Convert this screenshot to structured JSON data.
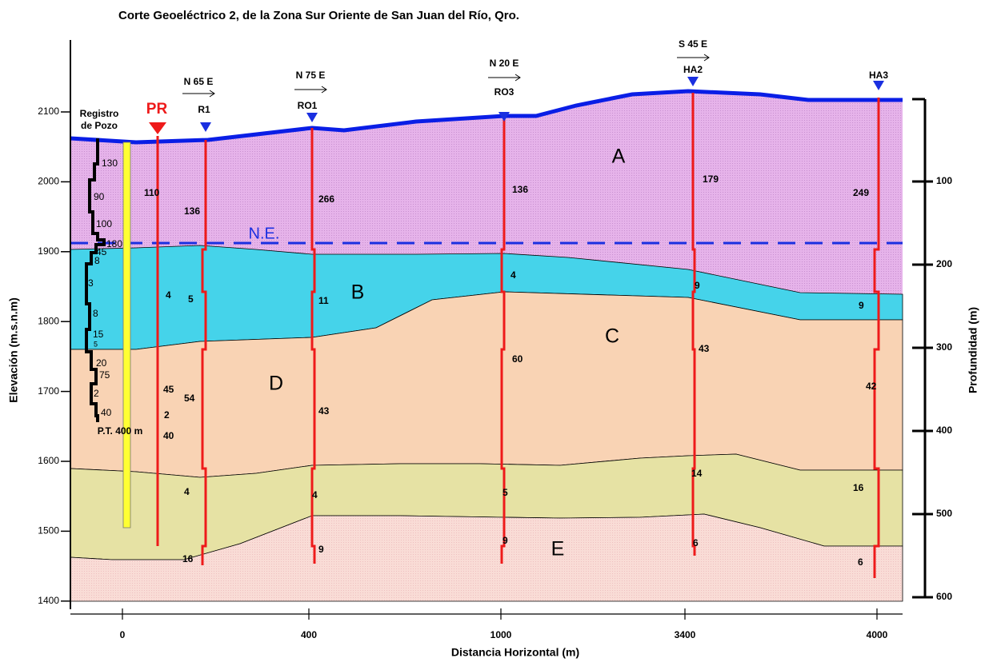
{
  "title": "Corte Geoeléctrico 2, de la Zona Sur Oriente de San Juan del Río, Qro.",
  "y_axis_label": "Elevación (m.s.n.m)",
  "y2_axis_label": "Profundidad (m)",
  "x_axis_label": "Distancia Horizontal (m)",
  "left_ticks": [
    1400,
    1500,
    1600,
    1700,
    1800,
    1900,
    2000,
    2100
  ],
  "right_ticks": [
    100,
    200,
    300,
    400,
    500,
    600
  ],
  "bottom_ticks": [
    "0",
    "400",
    "1000",
    "3400",
    "4000"
  ],
  "layers": [
    "A",
    "B",
    "C",
    "D",
    "E"
  ],
  "water_table": "N.E.",
  "well": {
    "title": [
      "Registro",
      "de Pozo"
    ],
    "values": [
      "130",
      "90",
      "100",
      "180",
      "45",
      "8",
      "3",
      "8",
      "15",
      "5",
      "20",
      "75",
      "2",
      "40"
    ],
    "depth": "P.T.  400 m"
  },
  "soundings": [
    {
      "name": "PR",
      "values": [
        "110",
        "4",
        "45",
        "2",
        "40"
      ]
    },
    {
      "name": "R1",
      "direction": "N 65 E",
      "values": [
        "136",
        "5",
        "54",
        "4",
        "16"
      ]
    },
    {
      "name": "RO1",
      "direction": "N 75 E",
      "values": [
        "266",
        "11",
        "43",
        "4",
        "9"
      ]
    },
    {
      "name": "RO3",
      "direction": "N 20 E",
      "values": [
        "136",
        "4",
        "60",
        "5",
        "9"
      ]
    },
    {
      "name": "HA2",
      "direction": "S 45 E",
      "values": [
        "179",
        "9",
        "43",
        "14",
        "6"
      ]
    },
    {
      "name": "HA3",
      "values": [
        "249",
        "9",
        "42",
        "16",
        "6"
      ]
    }
  ]
}
